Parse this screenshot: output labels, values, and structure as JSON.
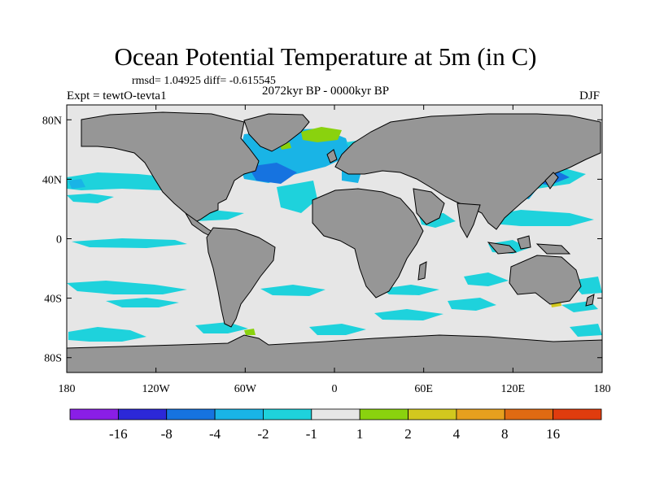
{
  "title": "Ocean Potential Temperature at 5m (in C)",
  "stats_line": "rmsd= 1.04925 diff= -0.615545",
  "experiment": "Expt = tewtO-tevta1",
  "period": "2072kyr BP - 0000kyr BP",
  "season": "DJF",
  "axes": {
    "lat_ticks": [
      {
        "value": 80,
        "label": "80N"
      },
      {
        "value": 40,
        "label": "40N"
      },
      {
        "value": 0,
        "label": "0"
      },
      {
        "value": -40,
        "label": "40S"
      },
      {
        "value": -80,
        "label": "80S"
      }
    ],
    "lon_ticks": [
      {
        "value": -180,
        "label": "180"
      },
      {
        "value": -120,
        "label": "120W"
      },
      {
        "value": -60,
        "label": "60W"
      },
      {
        "value": 0,
        "label": "0"
      },
      {
        "value": 60,
        "label": "60E"
      },
      {
        "value": 120,
        "label": "120E"
      },
      {
        "value": 180,
        "label": "180"
      }
    ],
    "lon_range": [
      -180,
      180
    ],
    "lat_range": [
      -90,
      90
    ]
  },
  "colorbar": {
    "colors": [
      "#8a1ee6",
      "#2c28d8",
      "#1673e0",
      "#19b4e6",
      "#1ed2dc",
      "#e6e6e6",
      "#8ad20e",
      "#d2c81e",
      "#e6a01e",
      "#e06a12",
      "#e03c0e"
    ],
    "labels": [
      "-16",
      "-8",
      "-4",
      "-2",
      "-1",
      "1",
      "2",
      "4",
      "8",
      "16"
    ]
  },
  "legend_colors": {
    "land": "#969696",
    "ocean_background": "#e6e6e6",
    "coastline": "#000000"
  }
}
